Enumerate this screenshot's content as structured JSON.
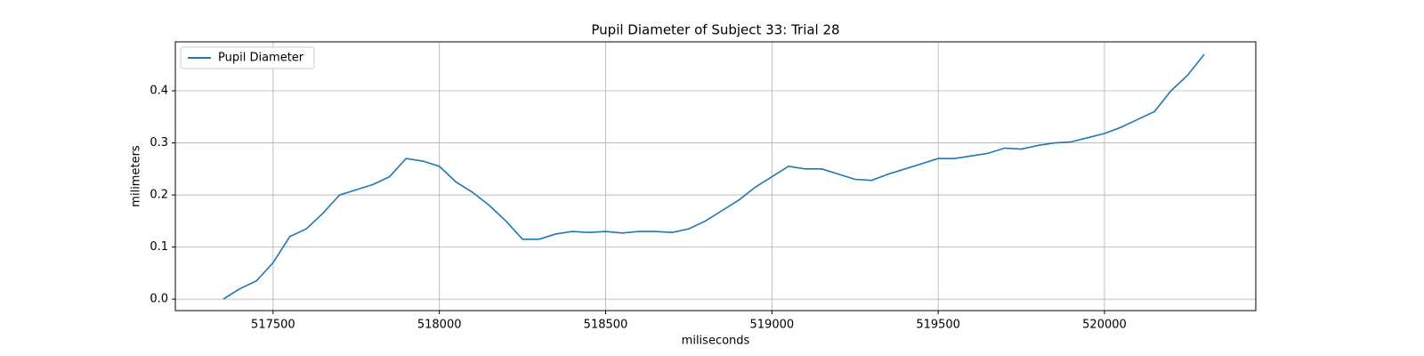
{
  "chart_data": {
    "type": "line",
    "title": "Pupil Diameter of Subject 33: Trial 28",
    "xlabel": "miliseconds",
    "ylabel": "milimeters",
    "x": [
      517350,
      517400,
      517450,
      517500,
      517550,
      517600,
      517650,
      517700,
      517750,
      517800,
      517850,
      517900,
      517950,
      518000,
      518050,
      518100,
      518150,
      518200,
      518250,
      518300,
      518350,
      518400,
      518450,
      518500,
      518550,
      518600,
      518650,
      518700,
      518750,
      518800,
      518850,
      518900,
      518950,
      519000,
      519050,
      519100,
      519150,
      519200,
      519250,
      519300,
      519350,
      519400,
      519450,
      519500,
      519550,
      519600,
      519650,
      519700,
      519750,
      519800,
      519850,
      519900,
      519950,
      520000,
      520050,
      520100,
      520150,
      520200,
      520250,
      520300
    ],
    "series": [
      {
        "name": "Pupil Diameter",
        "color": "#1f77b4",
        "values": [
          0.0,
          0.02,
          0.035,
          0.07,
          0.12,
          0.135,
          0.165,
          0.2,
          0.21,
          0.22,
          0.235,
          0.27,
          0.265,
          0.255,
          0.225,
          0.205,
          0.18,
          0.15,
          0.115,
          0.115,
          0.125,
          0.13,
          0.128,
          0.13,
          0.127,
          0.13,
          0.13,
          0.128,
          0.135,
          0.15,
          0.17,
          0.19,
          0.215,
          0.235,
          0.255,
          0.25,
          0.25,
          0.24,
          0.23,
          0.228,
          0.24,
          0.25,
          0.26,
          0.27,
          0.27,
          0.275,
          0.28,
          0.29,
          0.288,
          0.295,
          0.3,
          0.302,
          0.31,
          0.318,
          0.33,
          0.345,
          0.36,
          0.4,
          0.43,
          0.47
        ]
      }
    ],
    "xlim": [
      517206,
      520455
    ],
    "xticks": [
      517500,
      518000,
      518500,
      519000,
      519500,
      520000
    ],
    "ylim": [
      -0.022,
      0.494
    ],
    "yticks": [
      {
        "value": 0,
        "label": "0.0"
      },
      0.1,
      0.2,
      0.3,
      0.4
    ],
    "grid": true,
    "legend": "upper left"
  }
}
